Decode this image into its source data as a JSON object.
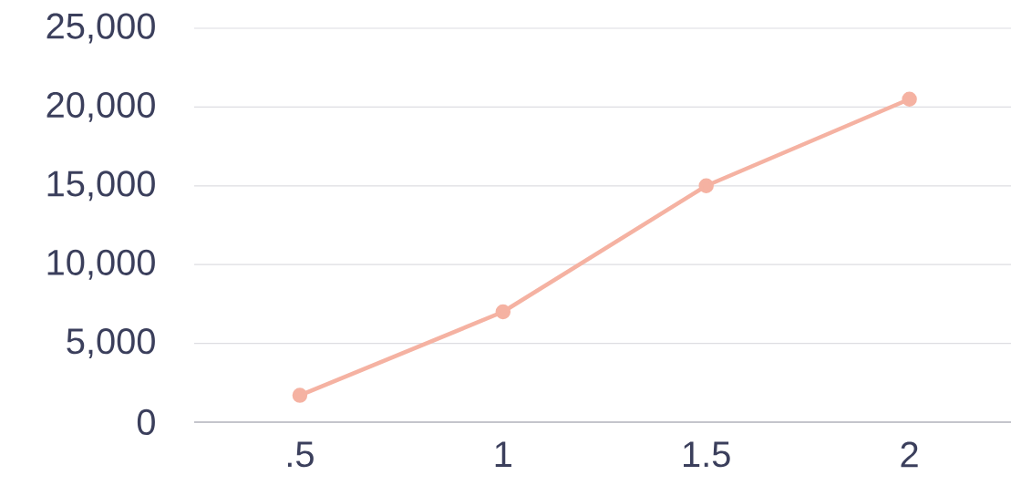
{
  "chart_data": {
    "type": "line",
    "categories": [
      ".5",
      "1",
      "1.5",
      "2"
    ],
    "series": [
      {
        "color": "#f5b2a2",
        "values": [
          1700,
          7000,
          15000,
          20500
        ]
      }
    ],
    "ylim": [
      0,
      25000
    ],
    "yticks": [
      0,
      {
        "value": 5000,
        "label": "5,000"
      },
      {
        "value": 10000,
        "label": "10,000"
      },
      {
        "value": 15000,
        "label": "15,000"
      },
      {
        "value": 20000,
        "label": "20,000"
      },
      {
        "value": 25000,
        "label": "25,000"
      }
    ],
    "grid": "y",
    "marker": "circle",
    "line_style": "solid"
  }
}
